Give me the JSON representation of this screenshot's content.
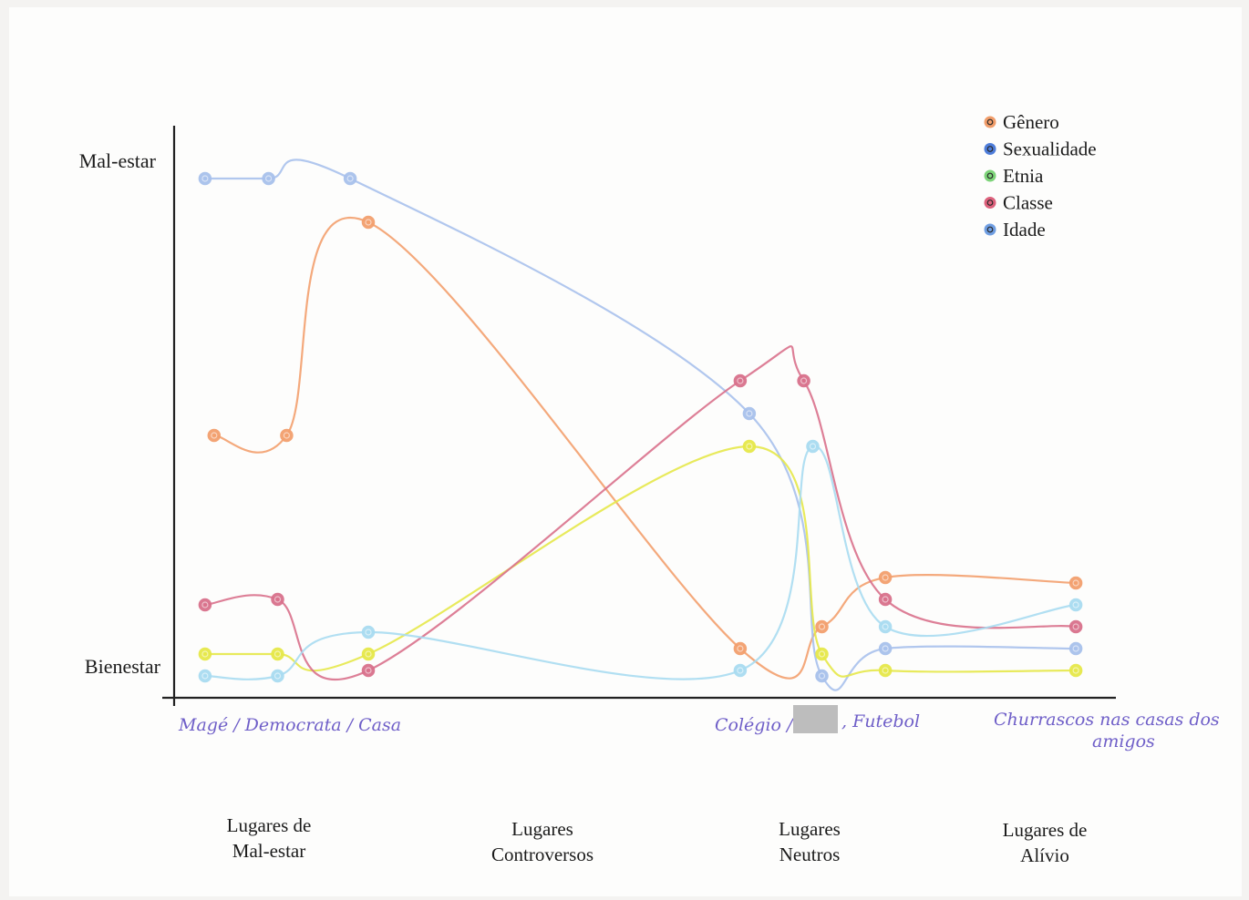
{
  "chart_data": {
    "type": "line",
    "y_axis": {
      "top_label": "Mal-estar",
      "bottom_label": "Bienestar",
      "ylim": [
        0,
        100
      ]
    },
    "categories": [
      {
        "line1": "Lugares de",
        "line2": "Mal-estar"
      },
      {
        "line1": "Lugares",
        "line2": "Controversos"
      },
      {
        "line1": "Lugares",
        "line2": "Neutros"
      },
      {
        "line1": "Lugares de",
        "line2": "Alívio"
      }
    ],
    "handwritten_notes": [
      {
        "text": "Magé / Democrata / Casa"
      },
      {
        "text": "Colégio /"
      },
      {
        "text": ", Futebol"
      },
      {
        "text": "Churrascos nas casas dos"
      },
      {
        "text": "amigos"
      }
    ],
    "x_domain": [
      0,
      100
    ],
    "legend": {
      "placement": "top-right",
      "items": [
        {
          "label": "Gênero",
          "color": "#f0925a"
        },
        {
          "label": "Sexualidade",
          "color": "#3b6fd6"
        },
        {
          "label": "Etnia",
          "color": "#6fcf6a"
        },
        {
          "label": "Classe",
          "color": "#d9506e"
        },
        {
          "label": "Idade",
          "color": "#5f93df"
        }
      ]
    },
    "series": [
      {
        "name": "Gênero",
        "color": "#f3a06e",
        "x": [
          3,
          11,
          20,
          61,
          70,
          77,
          98
        ],
        "y": [
          47,
          47,
          86,
          8,
          12,
          21,
          20
        ]
      },
      {
        "name": "Sexualidade",
        "color": "#a8c1ec",
        "x": [
          2,
          9,
          18,
          62,
          70,
          77,
          98
        ],
        "y": [
          94,
          94,
          94,
          51,
          3,
          8,
          8
        ]
      },
      {
        "name": "Etnia",
        "color": "#e6e84a",
        "x": [
          2,
          10,
          20,
          62,
          70,
          77,
          98
        ],
        "y": [
          7,
          7,
          7,
          45,
          7,
          4,
          4
        ]
      },
      {
        "name": "Classe",
        "color": "#d9718c",
        "x": [
          2,
          10,
          20,
          61,
          68,
          77,
          98
        ],
        "y": [
          16,
          17,
          4,
          57,
          57,
          17,
          12
        ]
      },
      {
        "name": "Idade",
        "color": "#a9dcf1",
        "x": [
          2,
          10,
          20,
          61,
          69,
          77,
          98
        ],
        "y": [
          3,
          3,
          11,
          4,
          45,
          12,
          16
        ]
      }
    ]
  }
}
